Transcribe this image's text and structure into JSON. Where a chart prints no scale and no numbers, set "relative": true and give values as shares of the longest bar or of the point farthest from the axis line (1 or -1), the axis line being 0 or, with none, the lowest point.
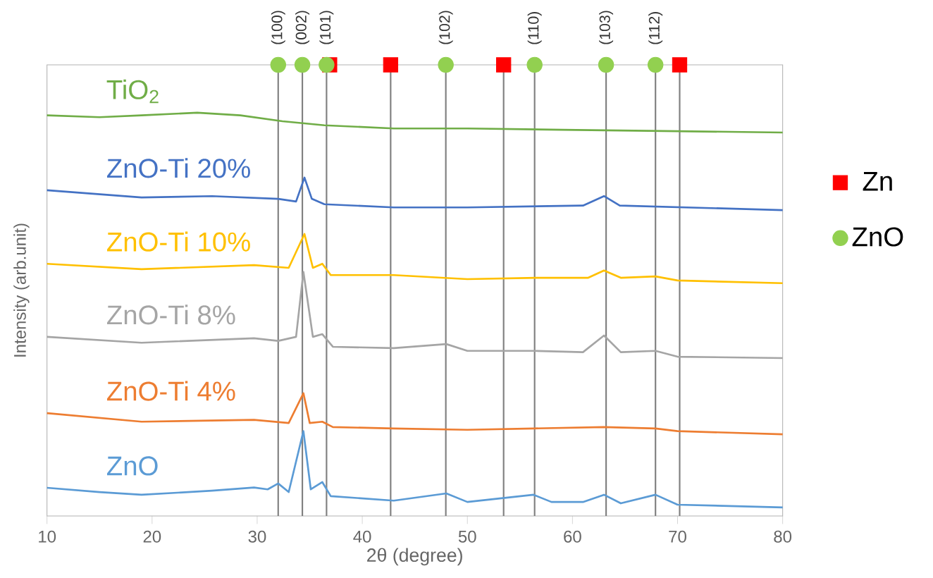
{
  "chart_data": {
    "type": "line",
    "relative": true,
    "xlabel": "2θ (degree)",
    "ylabel": "Intensity (arb.unit)",
    "xlim": [
      10,
      80
    ],
    "xticks": [
      10,
      20,
      30,
      40,
      50,
      60,
      70,
      80
    ],
    "legend": "right",
    "grid": false,
    "series": [
      {
        "name": "Zn",
        "type": "scatter",
        "marker": "square",
        "color": "#ff0000",
        "x": [
          36.9,
          42.7,
          53.45,
          70.2
        ],
        "values": [
          1,
          1,
          1,
          1
        ]
      },
      {
        "name": "ZnO",
        "type": "scatter",
        "marker": "circle",
        "color": "#92d050",
        "x": [
          32.0,
          34.3,
          36.6,
          47.95,
          56.4,
          63.2,
          67.9
        ],
        "values": [
          1,
          1,
          1,
          1,
          1,
          1,
          1
        ]
      },
      {
        "name": "TiO$_{2}$",
        "color": "#70ad47",
        "x": [
          10,
          15,
          19,
          24.3,
          28.4,
          32.4,
          36.4,
          43,
          50,
          59,
          70,
          80
        ],
        "values": [
          0.888,
          0.884,
          0.888,
          0.894,
          0.888,
          0.875,
          0.866,
          0.859,
          0.859,
          0.856,
          0.853,
          0.85
        ]
      },
      {
        "name": "ZnO-Ti 20%",
        "color": "#4472c4",
        "x": [
          10,
          19,
          25.7,
          32,
          33.7,
          34.5,
          35.2,
          36.4,
          43,
          50,
          61,
          63,
          64.5,
          80
        ],
        "values": [
          0.722,
          0.706,
          0.709,
          0.703,
          0.697,
          0.75,
          0.703,
          0.691,
          0.684,
          0.684,
          0.688,
          0.709,
          0.688,
          0.678
        ]
      },
      {
        "name": "ZnO-Ti 10%",
        "color": "#ffc000",
        "x": [
          10,
          19,
          29.7,
          33,
          34.5,
          35.3,
          36.2,
          37,
          43,
          50,
          56.5,
          61.5,
          63,
          64.6,
          67.9,
          70,
          80
        ],
        "values": [
          0.559,
          0.547,
          0.556,
          0.55,
          0.625,
          0.55,
          0.559,
          0.534,
          0.534,
          0.525,
          0.528,
          0.528,
          0.544,
          0.528,
          0.531,
          0.522,
          0.516
        ]
      },
      {
        "name": "ZnO-Ti 8%",
        "color": "#a5a5a5",
        "x": [
          10,
          19,
          29.7,
          32,
          33.7,
          34.4,
          35.3,
          36.2,
          37.2,
          43,
          48,
          50,
          56.3,
          61,
          63,
          64.6,
          67.9,
          70,
          80
        ],
        "values": [
          0.397,
          0.384,
          0.394,
          0.388,
          0.397,
          0.541,
          0.397,
          0.403,
          0.375,
          0.372,
          0.381,
          0.366,
          0.366,
          0.363,
          0.4,
          0.363,
          0.366,
          0.353,
          0.35
        ]
      },
      {
        "name": "ZnO-Ti 4%",
        "color": "#ed7d31",
        "x": [
          10,
          19,
          29.7,
          33,
          34.4,
          35,
          36.2,
          37.2,
          43,
          50,
          56.3,
          63,
          67.9,
          70,
          80
        ],
        "values": [
          0.228,
          0.209,
          0.213,
          0.206,
          0.272,
          0.206,
          0.209,
          0.197,
          0.194,
          0.191,
          0.194,
          0.197,
          0.194,
          0.188,
          0.181
        ]
      },
      {
        "name": "ZnO",
        "color": "#5b9bd5",
        "x": [
          10,
          15,
          19,
          25.7,
          29.7,
          31,
          32,
          33,
          34.4,
          35.1,
          36.2,
          37,
          43,
          48,
          50,
          56.3,
          58,
          61,
          63,
          64.6,
          67.9,
          70,
          80
        ],
        "values": [
          0.0625,
          0.053,
          0.047,
          0.056,
          0.063,
          0.059,
          0.072,
          0.053,
          0.188,
          0.059,
          0.075,
          0.044,
          0.034,
          0.05,
          0.031,
          0.047,
          0.031,
          0.031,
          0.047,
          0.028,
          0.047,
          0.025,
          0.019
        ]
      }
    ],
    "ref_lines": [
      {
        "axis": "x",
        "value": 32.0,
        "color": "#7f7f7f"
      },
      {
        "axis": "x",
        "value": 34.3,
        "color": "#7f7f7f"
      },
      {
        "axis": "x",
        "value": 36.6,
        "color": "#7f7f7f"
      },
      {
        "axis": "x",
        "value": 42.7,
        "color": "#7f7f7f"
      },
      {
        "axis": "x",
        "value": 47.95,
        "color": "#7f7f7f"
      },
      {
        "axis": "x",
        "value": 53.45,
        "color": "#7f7f7f"
      },
      {
        "axis": "x",
        "value": 56.4,
        "color": "#7f7f7f"
      },
      {
        "axis": "x",
        "value": 63.2,
        "color": "#7f7f7f"
      },
      {
        "axis": "x",
        "value": 67.9,
        "color": "#7f7f7f"
      },
      {
        "axis": "x",
        "value": 70.2,
        "color": "#7f7f7f"
      }
    ],
    "annotations": [
      {
        "text": "(100)",
        "x": 32.0,
        "y": 1
      },
      {
        "text": "(002)",
        "x": 34.3,
        "y": 1
      },
      {
        "text": "(101)",
        "x": 36.6,
        "y": 1
      },
      {
        "text": "(102)",
        "x": 47.95,
        "y": 1
      },
      {
        "text": "(110)",
        "x": 56.4,
        "y": 1
      },
      {
        "text": "(103)",
        "x": 63.2,
        "y": 1
      },
      {
        "text": "(112)",
        "x": 67.9,
        "y": 1
      }
    ]
  }
}
